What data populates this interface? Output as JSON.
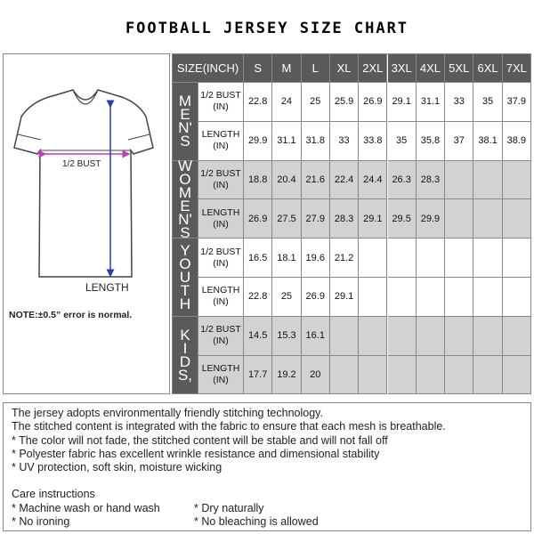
{
  "title": "FOOTBALL JERSEY SIZE CHART",
  "figure": {
    "bust_label": "1/2 BUST",
    "length_label": "LENGTH",
    "note": "NOTE:±0.5” error is normal."
  },
  "table": {
    "header": [
      "SIZE(INCH)",
      "S",
      "M",
      "L",
      "XL",
      "2XL",
      "3XL",
      "4XL",
      "5XL",
      "6XL",
      "7XL"
    ],
    "groups": [
      {
        "label": [
          "M",
          "E",
          "N'",
          "S"
        ],
        "rows": [
          {
            "label": "1/2 BUST (IN)",
            "values": [
              22.8,
              24,
              25,
              25.9,
              26.9,
              29.1,
              31.1,
              33,
              35,
              37.9
            ]
          },
          {
            "label": "LENGTH (IN)",
            "values": [
              29.9,
              31.1,
              31.8,
              33,
              33.8,
              35,
              35.8,
              37,
              38.1,
              38.9
            ]
          }
        ]
      },
      {
        "label": [
          "W",
          "O",
          "M",
          "E",
          "N'",
          "S"
        ],
        "rows": [
          {
            "label": "1/2 BUST (IN)",
            "values": [
              18.8,
              20.4,
              21.6,
              22.4,
              24.4,
              26.3,
              28.3
            ]
          },
          {
            "label": "LENGTH (IN)",
            "values": [
              26.9,
              27.5,
              27.9,
              28.3,
              29.1,
              29.5,
              29.9
            ]
          }
        ]
      },
      {
        "label": [
          "Y",
          "O",
          "U",
          "T",
          "H"
        ],
        "rows": [
          {
            "label": "1/2 BUST (IN)",
            "values": [
              16.5,
              18.1,
              19.6,
              21.2
            ]
          },
          {
            "label": "LENGTH (IN)",
            "values": [
              22.8,
              25,
              26.9,
              29.1
            ]
          }
        ]
      },
      {
        "label": [
          "K",
          "I",
          "D",
          "S,"
        ],
        "rows": [
          {
            "label": "1/2 BUST (IN)",
            "values": [
              14.5,
              15.3,
              16.1
            ]
          },
          {
            "label": "LENGTH (IN)",
            "values": [
              17.7,
              19.2,
              20
            ]
          }
        ]
      }
    ]
  },
  "notes": {
    "features": [
      "The jersey adopts environmentally friendly stitching technology.",
      "The stitched content is integrated with the fabric to ensure that each mesh is breathable.",
      "* The color will not fade, the stitched content will be stable and will not fall off",
      "* Polyester fabric has excellent wrinkle resistance and dimensional stability",
      "* UV protection, soft skin, moisture wicking"
    ],
    "care_title": "Care instructions",
    "care": [
      [
        "* Machine wash or hand wash",
        "* Dry naturally"
      ],
      [
        "* No ironing",
        "* No bleaching is allowed"
      ]
    ]
  }
}
